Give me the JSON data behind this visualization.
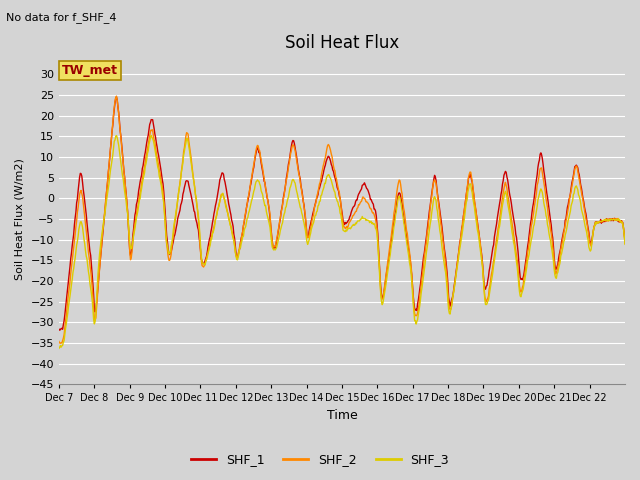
{
  "title": "Soil Heat Flux",
  "subtitle": "No data for f_SHF_4",
  "ylabel": "Soil Heat Flux (W/m2)",
  "xlabel": "Time",
  "legend_label": "TW_met",
  "ylim": [
    -45,
    35
  ],
  "yticks": [
    -45,
    -40,
    -35,
    -30,
    -25,
    -20,
    -15,
    -10,
    -5,
    0,
    5,
    10,
    15,
    20,
    25,
    30
  ],
  "colors": {
    "SHF_1": "#cc0000",
    "SHF_2": "#ff8800",
    "SHF_3": "#ddcc00"
  },
  "background_color": "#d4d4d4",
  "plot_bg_color": "#d4d4d4",
  "grid_color": "#ffffff",
  "line_width": 1.0,
  "xtick_labels": [
    "Dec 7",
    "Dec 8",
    "Dec 9",
    "Dec 10",
    "Dec 11",
    "Dec 12",
    "Dec 13",
    "Dec 14",
    "Dec 15",
    "Dec 16",
    "Dec 17",
    "Dec 18",
    "Dec 19",
    "Dec 20",
    "Dec 21",
    "Dec 22"
  ]
}
